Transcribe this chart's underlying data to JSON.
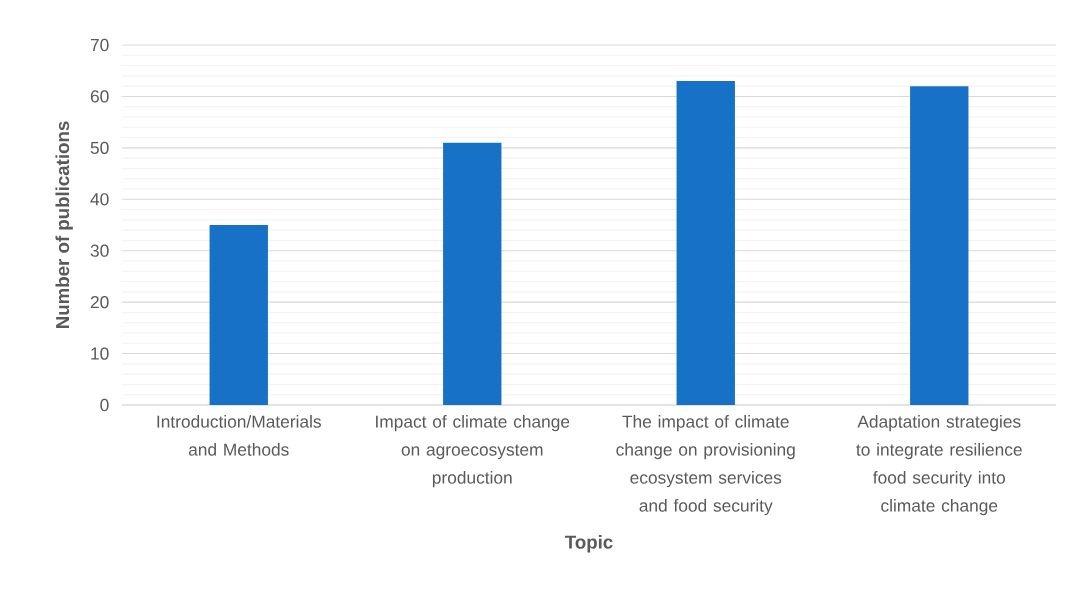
{
  "chart_data": {
    "type": "bar",
    "xlabel": "Topic",
    "ylabel": "Number of publications",
    "categories": [
      "Introduction/Materials and Methods",
      "Impact of climate change on agroecosystem production",
      "The impact of climate change on provisioning ecosystem services and food security",
      "Adaptation strategies to integrate resilience food security into climate change"
    ],
    "values": [
      35,
      51,
      63,
      62
    ],
    "color": "#1771c7",
    "ylim": [
      0,
      70
    ],
    "yticks": [
      0,
      10,
      20,
      30,
      40,
      50,
      60,
      70
    ],
    "grid": "y"
  }
}
